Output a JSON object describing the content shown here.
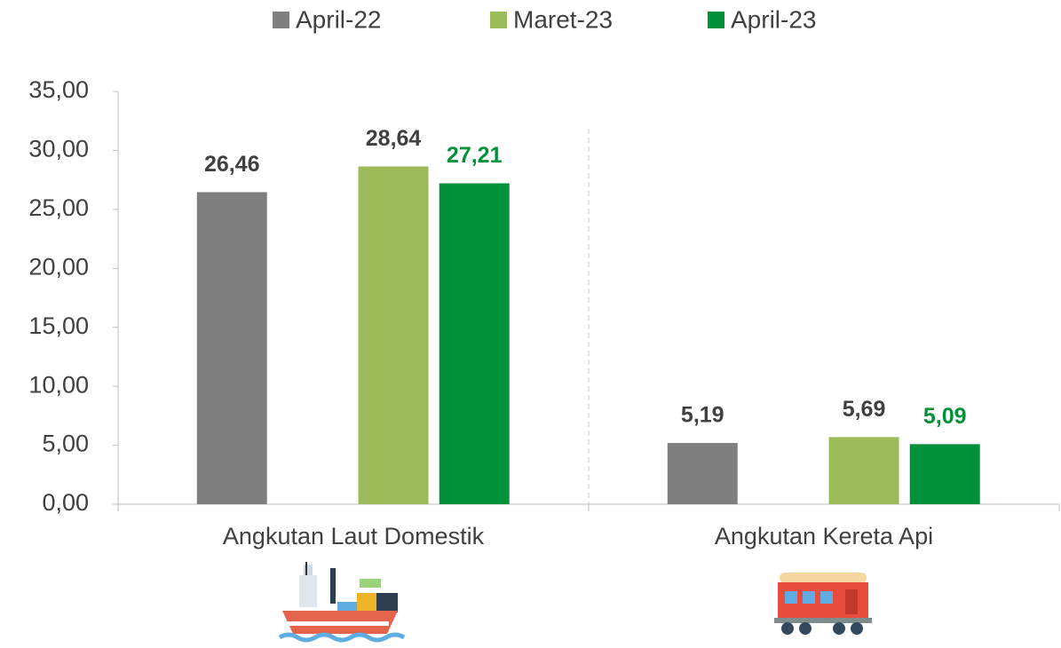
{
  "chart_data": {
    "type": "bar",
    "categories": [
      "Angkutan Laut Domestik",
      "Angkutan Kereta Api"
    ],
    "series": [
      {
        "name": "April-22",
        "color": "#7f7f7f",
        "values": [
          26.46,
          5.19
        ],
        "value_labels": [
          "26,46",
          "5,19"
        ]
      },
      {
        "name": "Maret-23",
        "color": "#9bbb59",
        "values": [
          28.64,
          5.69
        ],
        "value_labels": [
          "28,64",
          "5,69"
        ]
      },
      {
        "name": "April-23",
        "color": "#00913a",
        "values": [
          27.21,
          5.09
        ],
        "value_labels": [
          "27,21",
          "5,09"
        ]
      }
    ],
    "ylim": [
      0,
      35
    ],
    "yticks": [
      {
        "value": 0,
        "label": "0,00"
      },
      {
        "value": 5,
        "label": "5,00"
      },
      {
        "value": 10,
        "label": "10,00"
      },
      {
        "value": 15,
        "label": "15,00"
      },
      {
        "value": 20,
        "label": "20,00"
      },
      {
        "value": 25,
        "label": "25,00"
      },
      {
        "value": 30,
        "label": "30,00"
      },
      {
        "value": 35,
        "label": "35,00"
      }
    ],
    "grid": false,
    "legend": "top"
  }
}
